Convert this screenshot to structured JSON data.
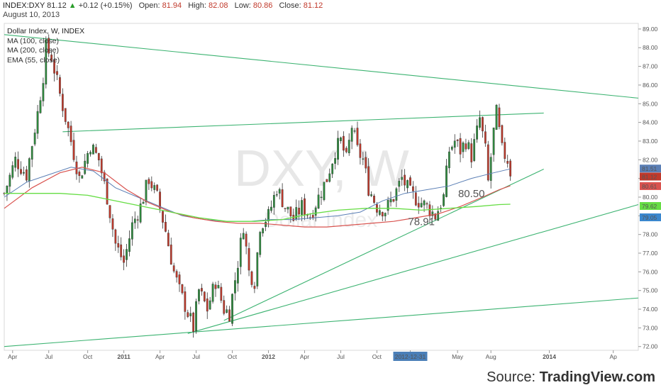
{
  "header": {
    "symbol": "INDEX:DXY",
    "price": "81.12",
    "change_arrow": "▲",
    "change": "+0.12 (+0.15%)",
    "open_label": "Open:",
    "open": "81.94",
    "high_label": "High:",
    "high": "82.08",
    "low_label": "Low:",
    "low": "80.86",
    "close_label": "Close:",
    "close": "81.12",
    "date": "August 10, 2013"
  },
  "legend": {
    "title": "Dollar Index, W, INDEX",
    "items": [
      "MA (100, close)",
      "MA (200, close)",
      "EMA (55, close)"
    ]
  },
  "watermark": {
    "big": "DXY, W",
    "small": "Dollar Index"
  },
  "footer": {
    "source_label": "Source: ",
    "source_name": "TradingView.com"
  },
  "colors": {
    "up": "#2e8b3e",
    "down": "#c0392b",
    "trend": "#3cb371",
    "ma100": "#5b7fb5",
    "ma200": "#d9534f",
    "ema55": "#66dd44"
  },
  "chart_data": {
    "type": "candlestick",
    "interval": "weekly",
    "x_ticks": [
      "Apr",
      "Jul",
      "Oct",
      "2011",
      "Apr",
      "Jul",
      "Oct",
      "2012",
      "Apr",
      "Jul",
      "Oct",
      "2012-12-31",
      "May",
      "Aug",
      "2014",
      "Ap"
    ],
    "y_ticks": [
      "89.00",
      "88.00",
      "87.00",
      "86.00",
      "85.00",
      "84.00",
      "83.00",
      "82.00",
      "81.00",
      "80.00",
      "79.00",
      "78.00",
      "77.00",
      "76.00",
      "75.00",
      "74.00",
      "73.00",
      "72.00"
    ],
    "ylim": [
      71.8,
      89.3
    ],
    "close_path": [
      {
        "t": 0,
        "v": 80.2
      },
      {
        "t": 4,
        "v": 82.0
      },
      {
        "t": 8,
        "v": 81.2
      },
      {
        "t": 12,
        "v": 84.5
      },
      {
        "t": 14,
        "v": 86.5
      },
      {
        "t": 15,
        "v": 88.0
      },
      {
        "t": 17,
        "v": 87.5
      },
      {
        "t": 20,
        "v": 85.5
      },
      {
        "t": 24,
        "v": 83.0
      },
      {
        "t": 27,
        "v": 81.0
      },
      {
        "t": 31,
        "v": 82.8
      },
      {
        "t": 34,
        "v": 82.0
      },
      {
        "t": 37,
        "v": 80.0
      },
      {
        "t": 40,
        "v": 77.5
      },
      {
        "t": 43,
        "v": 76.5
      },
      {
        "t": 46,
        "v": 78.5
      },
      {
        "t": 49,
        "v": 79.5
      },
      {
        "t": 52,
        "v": 81.0
      },
      {
        "t": 55,
        "v": 80.0
      },
      {
        "t": 58,
        "v": 78.2
      },
      {
        "t": 61,
        "v": 76.0
      },
      {
        "t": 63,
        "v": 75.0
      },
      {
        "t": 66,
        "v": 73.8
      },
      {
        "t": 68,
        "v": 73.0
      },
      {
        "t": 70,
        "v": 75.0
      },
      {
        "t": 73,
        "v": 74.0
      },
      {
        "t": 76,
        "v": 75.5
      },
      {
        "t": 79,
        "v": 74.0
      },
      {
        "t": 81,
        "v": 73.8
      },
      {
        "t": 84,
        "v": 76.5
      },
      {
        "t": 86,
        "v": 78.5
      },
      {
        "t": 88,
        "v": 76.0
      },
      {
        "t": 90,
        "v": 75.5
      },
      {
        "t": 92,
        "v": 78.5
      },
      {
        "t": 95,
        "v": 79.0
      },
      {
        "t": 98,
        "v": 80.5
      },
      {
        "t": 101,
        "v": 79.5
      },
      {
        "t": 104,
        "v": 78.8
      },
      {
        "t": 107,
        "v": 79.5
      },
      {
        "t": 110,
        "v": 79.0
      },
      {
        "t": 113,
        "v": 80.0
      },
      {
        "t": 116,
        "v": 81.0
      },
      {
        "t": 119,
        "v": 82.5
      },
      {
        "t": 121,
        "v": 83.0
      },
      {
        "t": 123,
        "v": 82.0
      },
      {
        "t": 125,
        "v": 83.8
      },
      {
        "t": 127,
        "v": 82.5
      },
      {
        "t": 129,
        "v": 82.0
      },
      {
        "t": 131,
        "v": 80.5
      },
      {
        "t": 134,
        "v": 79.5
      },
      {
        "t": 137,
        "v": 79.3
      },
      {
        "t": 140,
        "v": 80.0
      },
      {
        "t": 143,
        "v": 81.0
      },
      {
        "t": 146,
        "v": 80.2
      },
      {
        "t": 149,
        "v": 79.8
      },
      {
        "t": 152,
        "v": 79.5
      },
      {
        "t": 155,
        "v": 79.0
      },
      {
        "t": 158,
        "v": 80.0
      },
      {
        "t": 160,
        "v": 82.5
      },
      {
        "t": 162,
        "v": 83.0
      },
      {
        "t": 164,
        "v": 82.5
      },
      {
        "t": 166,
        "v": 83.0
      },
      {
        "t": 168,
        "v": 82.2
      },
      {
        "t": 170,
        "v": 83.5
      },
      {
        "t": 171,
        "v": 84.2
      },
      {
        "t": 173,
        "v": 82.5
      },
      {
        "t": 174,
        "v": 80.8
      },
      {
        "t": 176,
        "v": 83.5
      },
      {
        "t": 177,
        "v": 84.5
      },
      {
        "t": 179,
        "v": 82.5
      },
      {
        "t": 181,
        "v": 82.0
      },
      {
        "t": 182,
        "v": 81.12
      }
    ],
    "ma100": [
      {
        "t": 0,
        "v": 80.0
      },
      {
        "t": 8,
        "v": 80.8
      },
      {
        "t": 16,
        "v": 81.2
      },
      {
        "t": 24,
        "v": 81.6
      },
      {
        "t": 32,
        "v": 81.4
      },
      {
        "t": 40,
        "v": 80.5
      },
      {
        "t": 48,
        "v": 80.0
      },
      {
        "t": 56,
        "v": 79.5
      },
      {
        "t": 64,
        "v": 79.0
      },
      {
        "t": 72,
        "v": 78.8
      },
      {
        "t": 80,
        "v": 78.7
      },
      {
        "t": 88,
        "v": 78.7
      },
      {
        "t": 96,
        "v": 78.8
      },
      {
        "t": 104,
        "v": 78.8
      },
      {
        "t": 112,
        "v": 78.9
      },
      {
        "t": 120,
        "v": 79.0
      },
      {
        "t": 128,
        "v": 79.2
      },
      {
        "t": 136,
        "v": 79.8
      },
      {
        "t": 144,
        "v": 80.2
      },
      {
        "t": 152,
        "v": 80.4
      },
      {
        "t": 160,
        "v": 80.6
      },
      {
        "t": 168,
        "v": 81.0
      },
      {
        "t": 176,
        "v": 81.3
      },
      {
        "t": 182,
        "v": 81.51
      }
    ],
    "ma200": [
      {
        "t": 0,
        "v": 79.4
      },
      {
        "t": 10,
        "v": 80.5
      },
      {
        "t": 20,
        "v": 81.3
      },
      {
        "t": 28,
        "v": 81.6
      },
      {
        "t": 36,
        "v": 81.3
      },
      {
        "t": 44,
        "v": 80.4
      },
      {
        "t": 52,
        "v": 79.7
      },
      {
        "t": 60,
        "v": 79.2
      },
      {
        "t": 68,
        "v": 78.9
      },
      {
        "t": 76,
        "v": 78.7
      },
      {
        "t": 84,
        "v": 78.6
      },
      {
        "t": 92,
        "v": 78.6
      },
      {
        "t": 100,
        "v": 78.5
      },
      {
        "t": 108,
        "v": 78.4
      },
      {
        "t": 116,
        "v": 78.4
      },
      {
        "t": 124,
        "v": 78.5
      },
      {
        "t": 132,
        "v": 78.6
      },
      {
        "t": 140,
        "v": 78.7
      },
      {
        "t": 148,
        "v": 78.9
      },
      {
        "t": 156,
        "v": 79.1
      },
      {
        "t": 164,
        "v": 79.5
      },
      {
        "t": 172,
        "v": 80.0
      },
      {
        "t": 178,
        "v": 80.4
      },
      {
        "t": 182,
        "v": 80.61
      }
    ],
    "ema55": [
      {
        "t": 0,
        "v": 80.2
      },
      {
        "t": 10,
        "v": 80.2
      },
      {
        "t": 20,
        "v": 80.2
      },
      {
        "t": 30,
        "v": 80.1
      },
      {
        "t": 40,
        "v": 79.8
      },
      {
        "t": 50,
        "v": 79.5
      },
      {
        "t": 60,
        "v": 79.2
      },
      {
        "t": 70,
        "v": 78.9
      },
      {
        "t": 80,
        "v": 78.7
      },
      {
        "t": 90,
        "v": 78.7
      },
      {
        "t": 100,
        "v": 78.8
      },
      {
        "t": 110,
        "v": 79.1
      },
      {
        "t": 120,
        "v": 79.3
      },
      {
        "t": 130,
        "v": 79.4
      },
      {
        "t": 140,
        "v": 79.4
      },
      {
        "t": 150,
        "v": 79.3
      },
      {
        "t": 160,
        "v": 79.4
      },
      {
        "t": 170,
        "v": 79.5
      },
      {
        "t": 178,
        "v": 79.6
      },
      {
        "t": 182,
        "v": 79.62
      }
    ],
    "trendlines": [
      {
        "name": "upper-resistance",
        "t1": 0,
        "v1": 88.7,
        "t2": 228,
        "v2": 85.3
      },
      {
        "name": "horizontal-resistance",
        "t1": 21,
        "v1": 83.5,
        "t2": 194,
        "v2": 84.5
      },
      {
        "name": "support-steep",
        "t1": 79,
        "v1": 73.4,
        "t2": 194,
        "v2": 81.5
      },
      {
        "name": "support-mid",
        "t1": 66,
        "v1": 72.7,
        "t2": 228,
        "v2": 79.6
      },
      {
        "name": "support-low",
        "t1": 0,
        "v1": 72.0,
        "t2": 228,
        "v2": 74.6
      }
    ],
    "annotations": [
      {
        "text": "78.91",
        "t": 150,
        "v": 78.5
      },
      {
        "text": "80.50",
        "t": 168,
        "v": 80.0
      }
    ],
    "price_tags": [
      {
        "label": "81.51",
        "v": 81.51,
        "color": "#5b7fb5"
      },
      {
        "label": "81.12",
        "v": 81.12,
        "color": "#c0392b"
      },
      {
        "label": "80.61",
        "v": 80.61,
        "color": "#d9534f"
      },
      {
        "label": "79.62",
        "v": 79.62,
        "color": "#66dd44"
      },
      {
        "label": "79.05",
        "v": 79.05,
        "color": "#3a87ce"
      }
    ]
  }
}
